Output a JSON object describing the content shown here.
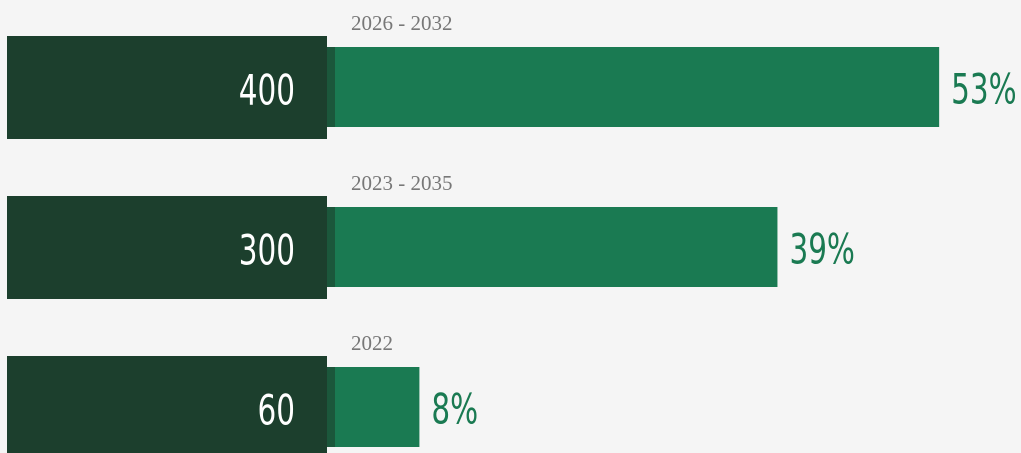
{
  "chart_data": {
    "type": "bar",
    "orientation": "horizontal",
    "categories": [
      "2026 - 2032",
      "2023 - 2035",
      "2022"
    ],
    "counts": [
      400,
      300,
      60
    ],
    "values": [
      53,
      39,
      8
    ],
    "value_labels": [
      "53%",
      "39%",
      "8%"
    ],
    "color": "#1a7a52",
    "count_color": "#1c3f2d"
  }
}
